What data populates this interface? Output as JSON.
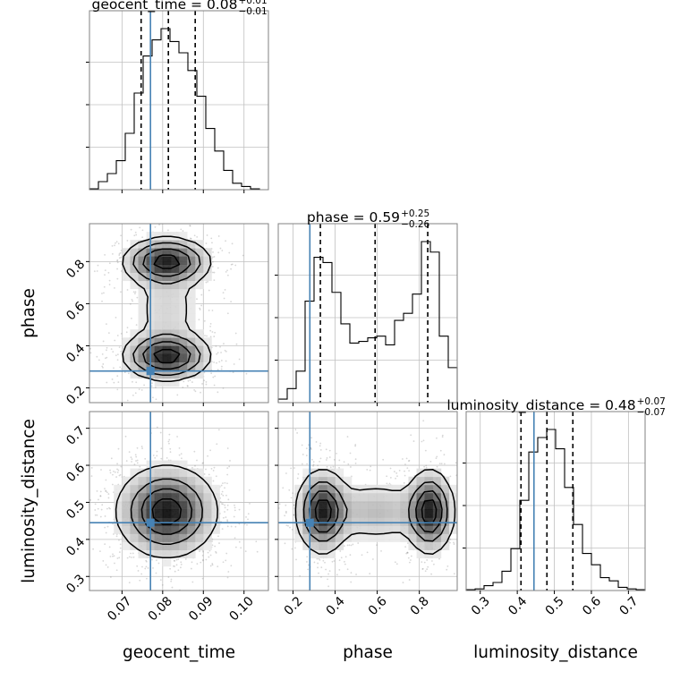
{
  "chart_data": {
    "type": "corner",
    "parameters": [
      "geocent_time",
      "phase",
      "luminosity_distance"
    ],
    "truth": {
      "geocent_time": 0.077,
      "phase": 0.28,
      "luminosity_distance": 0.445
    },
    "colors": {
      "truth": "#4682b4",
      "hist": "#000000",
      "quantile": "#000000",
      "grid": "#c0c0c0",
      "scatter": "#8c8c8c"
    },
    "grid": true,
    "titles": [
      {
        "param": "geocent_time",
        "text": "geocent_time = 0.08",
        "sup": "+0.01",
        "sub": "−0.01"
      },
      {
        "param": "phase",
        "text": "phase = 0.59",
        "sup": "+0.25",
        "sub": "−0.26"
      },
      {
        "param": "luminosity_distance",
        "text": "luminosity_distance = 0.48",
        "sup": "+0.07",
        "sub": "−0.07"
      }
    ],
    "axis_labels": {
      "x": [
        "geocent_time",
        "phase",
        "luminosity_distance"
      ],
      "y": [
        "phase",
        "luminosity_distance"
      ]
    },
    "axes": {
      "geocent_time": {
        "range": [
          0.062,
          0.106
        ],
        "ticks": [
          0.07,
          0.08,
          0.09,
          0.1
        ],
        "tick_labels": [
          "0.07",
          "0.08",
          "0.09",
          "0.10"
        ]
      },
      "phase": {
        "range": [
          0.13,
          0.98
        ],
        "ticks": [
          0.2,
          0.4,
          0.6,
          0.8
        ],
        "tick_labels": [
          "0.2",
          "0.4",
          "0.6",
          "0.8"
        ]
      },
      "luminosity_distance": {
        "range": [
          0.262,
          0.745
        ],
        "ticks": [
          0.3,
          0.4,
          0.5,
          0.6,
          0.7
        ],
        "tick_labels": [
          "0.3",
          "0.4",
          "0.5",
          "0.6",
          "0.7"
        ]
      }
    },
    "histograms": [
      {
        "param": "geocent_time",
        "bin_edges": [
          0.062,
          0.0642,
          0.0664,
          0.0686,
          0.0708,
          0.073,
          0.0752,
          0.0774,
          0.0796,
          0.0818,
          0.084,
          0.0862,
          0.0884,
          0.0906,
          0.0928,
          0.095,
          0.0972,
          0.0994,
          0.1016,
          0.1038,
          0.106
        ],
        "counts": [
          0.5,
          5,
          10,
          18,
          35,
          60,
          83,
          93,
          100,
          92,
          85,
          74,
          58,
          38,
          24,
          12,
          4,
          2,
          0.5,
          0
        ],
        "quantiles": [
          0.0747,
          0.0814,
          0.088
        ]
      },
      {
        "param": "phase",
        "bin_edges": [
          0.13,
          0.1725,
          0.215,
          0.2575,
          0.3,
          0.3425,
          0.385,
          0.4275,
          0.47,
          0.5125,
          0.555,
          0.5975,
          0.64,
          0.6825,
          0.725,
          0.7675,
          0.81,
          0.8525,
          0.895,
          0.9375,
          0.98
        ],
        "counts": [
          2,
          8,
          18,
          58,
          83,
          80,
          63,
          45,
          34,
          35,
          37,
          38,
          33,
          47,
          51,
          62,
          92,
          86,
          38,
          20
        ],
        "quantiles": [
          0.33,
          0.59,
          0.84
        ]
      },
      {
        "param": "luminosity_distance",
        "bin_edges": [
          0.262,
          0.2862,
          0.3103,
          0.3345,
          0.3586,
          0.3828,
          0.4069,
          0.4311,
          0.4552,
          0.4794,
          0.5035,
          0.5277,
          0.5518,
          0.576,
          0.6001,
          0.6243,
          0.6484,
          0.6726,
          0.6967,
          0.7209,
          0.745
        ],
        "counts": [
          0.5,
          1,
          3,
          5,
          12,
          26,
          56,
          86,
          95,
          100,
          88,
          64,
          41,
          23,
          16,
          8,
          6,
          2,
          1,
          0.5
        ],
        "quantiles": [
          0.41,
          0.48,
          0.55
        ]
      }
    ],
    "pairs": [
      {
        "x": "geocent_time",
        "y": "phase",
        "modes": [
          {
            "mx": 0.081,
            "my": 0.8,
            "sx": 0.0052,
            "sy": 0.055,
            "w": 1
          },
          {
            "mx": 0.081,
            "my": 0.35,
            "sx": 0.0052,
            "sy": 0.055,
            "w": 1
          }
        ],
        "bridge": {
          "mx": 0.081,
          "my": 0.575,
          "sx": 0.0055,
          "sy": 0.14,
          "w": 0.18
        },
        "levels": [
          0.12,
          0.3,
          0.55,
          0.85
        ]
      },
      {
        "x": "geocent_time",
        "y": "luminosity_distance",
        "modes": [
          {
            "mx": 0.081,
            "my": 0.475,
            "sx": 0.006,
            "sy": 0.06,
            "w": 1
          }
        ],
        "levels": [
          0.12,
          0.35,
          0.6,
          0.85
        ]
      },
      {
        "x": "phase",
        "y": "luminosity_distance",
        "modes": [
          {
            "mx": 0.34,
            "my": 0.475,
            "sx": 0.06,
            "sy": 0.055,
            "w": 1
          },
          {
            "mx": 0.85,
            "my": 0.475,
            "sx": 0.055,
            "sy": 0.055,
            "w": 1
          }
        ],
        "bridge": {
          "mx": 0.595,
          "my": 0.475,
          "sx": 0.14,
          "sy": 0.045,
          "w": 0.3
        },
        "levels": [
          0.12,
          0.35,
          0.6,
          0.85
        ]
      }
    ]
  }
}
